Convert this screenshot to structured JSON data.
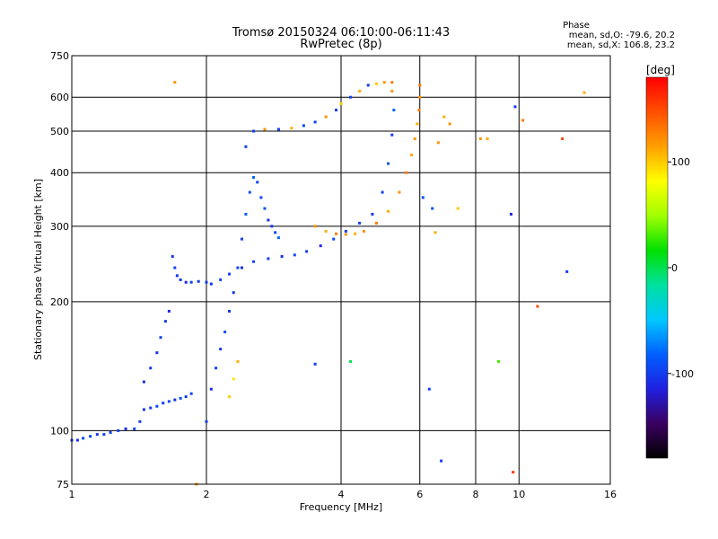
{
  "chart_data": {
    "type": "scatter",
    "title": "Tromsø 20150324 06:10:00-06:11:43",
    "subtitle": "RwPretec (8p)",
    "phase_header": "Phase",
    "phase_stats": [
      "mean, sd,O: -79.6, 20.2",
      "mean, sd,X: 106.8, 23.2"
    ],
    "xlabel": "Frequency [MHz]",
    "ylabel": "Stationary phase Virtual Height [km]",
    "x_scale": "log",
    "y_scale": "log",
    "xlim": [
      1,
      16
    ],
    "ylim": [
      75,
      750
    ],
    "x_ticks": [
      1,
      2,
      4,
      6,
      8,
      10,
      16
    ],
    "y_ticks": [
      75,
      100,
      200,
      300,
      400,
      500,
      600,
      750
    ],
    "grid": true,
    "colorbar": {
      "label": "[deg]",
      "range": [
        -180,
        180
      ],
      "ticks": [
        100,
        0,
        -100
      ],
      "colors": [
        "#000000",
        "#3a0060",
        "#2020e0",
        "#0060ff",
        "#00c8ff",
        "#00e0a0",
        "#00e000",
        "#a0ff00",
        "#ffff00",
        "#ffa000",
        "#ff5000",
        "#ff0000"
      ]
    },
    "series": [
      {
        "values": [
          [
            1.0,
            95,
            -100
          ],
          [
            1.03,
            95,
            -110
          ],
          [
            1.06,
            96,
            -95
          ],
          [
            1.1,
            97,
            -100
          ],
          [
            1.14,
            98,
            -105
          ],
          [
            1.18,
            98,
            -100
          ],
          [
            1.22,
            99,
            -95
          ],
          [
            1.27,
            100,
            -100
          ],
          [
            1.32,
            101,
            -110
          ],
          [
            1.38,
            101,
            -95
          ],
          [
            1.42,
            105,
            -100
          ],
          [
            1.45,
            112,
            -105
          ],
          [
            1.5,
            113,
            -100
          ],
          [
            1.55,
            114,
            -90
          ],
          [
            1.6,
            116,
            -100
          ],
          [
            1.65,
            117,
            -95
          ],
          [
            1.7,
            118,
            -105
          ],
          [
            1.75,
            119,
            -90
          ],
          [
            1.8,
            120,
            -100
          ],
          [
            1.85,
            122,
            -95
          ],
          [
            1.45,
            130,
            -110
          ],
          [
            1.5,
            140,
            -100
          ],
          [
            1.55,
            152,
            -105
          ],
          [
            1.58,
            165,
            -95
          ],
          [
            1.62,
            180,
            -100
          ],
          [
            1.65,
            190,
            -110
          ],
          [
            1.68,
            255,
            -100
          ],
          [
            1.7,
            240,
            -95
          ],
          [
            1.72,
            230,
            -105
          ],
          [
            1.75,
            225,
            -100
          ],
          [
            1.8,
            222,
            -110
          ],
          [
            1.85,
            222,
            -95
          ],
          [
            1.92,
            223,
            -100
          ],
          [
            2.0,
            222,
            -100
          ],
          [
            2.05,
            220,
            -105
          ],
          [
            2.15,
            225,
            -95
          ],
          [
            2.25,
            232,
            -100
          ],
          [
            2.4,
            240,
            -110
          ],
          [
            2.55,
            248,
            -95
          ],
          [
            2.75,
            252,
            -100
          ],
          [
            2.95,
            255,
            -105
          ],
          [
            3.15,
            257,
            -95
          ],
          [
            3.35,
            262,
            -100
          ],
          [
            3.6,
            270,
            -110
          ],
          [
            3.85,
            280,
            -95
          ],
          [
            4.1,
            292,
            -100
          ],
          [
            4.4,
            305,
            -100
          ],
          [
            4.7,
            320,
            -105
          ],
          [
            4.95,
            360,
            -95
          ],
          [
            5.1,
            420,
            -90
          ],
          [
            5.2,
            490,
            -100
          ],
          [
            5.25,
            560,
            -80
          ],
          [
            5.2,
            620,
            120
          ],
          [
            2.0,
            105,
            -100
          ],
          [
            2.05,
            125,
            -105
          ],
          [
            2.1,
            140,
            -95
          ],
          [
            2.15,
            155,
            -100
          ],
          [
            2.2,
            170,
            -90
          ],
          [
            2.25,
            190,
            -100
          ],
          [
            2.3,
            210,
            -105
          ],
          [
            2.35,
            240,
            -95
          ],
          [
            2.4,
            280,
            -100
          ],
          [
            2.45,
            320,
            -85
          ],
          [
            2.5,
            360,
            -90
          ],
          [
            2.55,
            390,
            -80
          ],
          [
            2.6,
            380,
            -100
          ],
          [
            2.65,
            350,
            -95
          ],
          [
            2.7,
            330,
            -90
          ],
          [
            2.75,
            310,
            -105
          ],
          [
            2.8,
            300,
            -100
          ],
          [
            2.85,
            290,
            -95
          ],
          [
            2.9,
            282,
            -80
          ],
          [
            2.25,
            120,
            100
          ],
          [
            2.3,
            132,
            90
          ],
          [
            2.35,
            145,
            110
          ],
          [
            2.45,
            460,
            -95
          ],
          [
            2.55,
            500,
            -100
          ],
          [
            2.7,
            505,
            120
          ],
          [
            2.9,
            505,
            -100
          ],
          [
            3.1,
            508,
            110
          ],
          [
            3.3,
            515,
            -95
          ],
          [
            3.5,
            525,
            -100
          ],
          [
            3.7,
            540,
            120
          ],
          [
            3.9,
            560,
            -100
          ],
          [
            4.0,
            580,
            100
          ],
          [
            4.2,
            600,
            -95
          ],
          [
            4.4,
            620,
            110
          ],
          [
            4.6,
            640,
            -100
          ],
          [
            4.8,
            645,
            100
          ],
          [
            5.0,
            650,
            120
          ],
          [
            5.2,
            650,
            130
          ],
          [
            3.5,
            300,
            120
          ],
          [
            3.7,
            292,
            110
          ],
          [
            3.9,
            288,
            130
          ],
          [
            4.1,
            287,
            120
          ],
          [
            4.3,
            288,
            110
          ],
          [
            4.5,
            292,
            120
          ],
          [
            4.8,
            305,
            130
          ],
          [
            5.1,
            325,
            110
          ],
          [
            5.4,
            360,
            120
          ],
          [
            5.6,
            400,
            130
          ],
          [
            5.75,
            440,
            110
          ],
          [
            5.85,
            480,
            120
          ],
          [
            5.92,
            520,
            110
          ],
          [
            5.98,
            560,
            130
          ],
          [
            6.0,
            600,
            120
          ],
          [
            6.0,
            640,
            130
          ],
          [
            6.1,
            350,
            -90
          ],
          [
            6.5,
            290,
            110
          ],
          [
            6.6,
            470,
            120
          ],
          [
            6.8,
            540,
            110
          ],
          [
            6.4,
            330,
            -90
          ],
          [
            6.3,
            125,
            -95
          ],
          [
            6.7,
            85,
            -100
          ],
          [
            7.0,
            520,
            120
          ],
          [
            7.3,
            330,
            100
          ],
          [
            8.2,
            480,
            120
          ],
          [
            8.5,
            480,
            110
          ],
          [
            9.0,
            145,
            30
          ],
          [
            9.6,
            320,
            -110
          ],
          [
            9.7,
            80,
            160
          ],
          [
            9.8,
            570,
            -100
          ],
          [
            10.2,
            530,
            130
          ],
          [
            11.0,
            195,
            150
          ],
          [
            12.5,
            480,
            150
          ],
          [
            12.8,
            235,
            -100
          ],
          [
            14.0,
            615,
            110
          ],
          [
            3.5,
            143,
            -100
          ],
          [
            4.2,
            145,
            0
          ],
          [
            1.7,
            650,
            120
          ],
          [
            1.9,
            75,
            120
          ]
        ]
      }
    ]
  }
}
